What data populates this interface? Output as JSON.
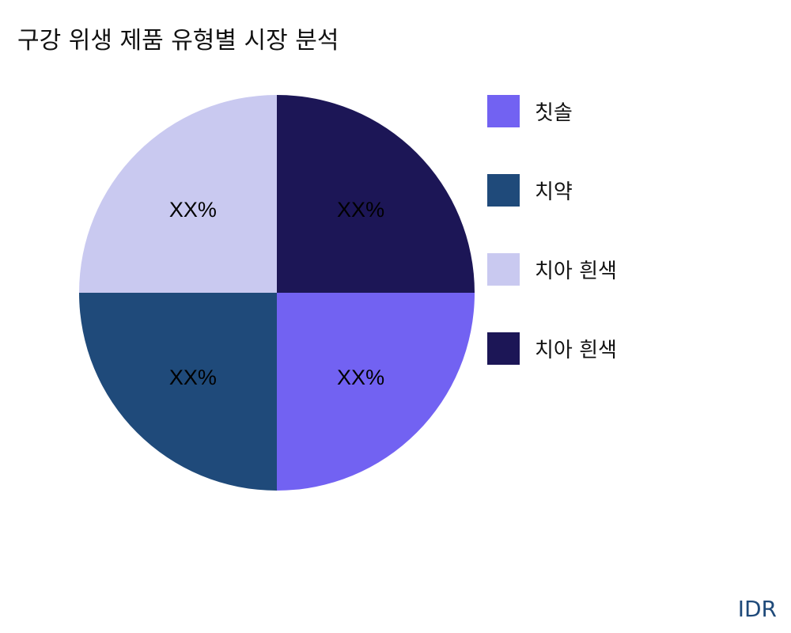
{
  "chart_data": {
    "type": "pie",
    "title": "구강 위생 제품 유형별 시장 분석",
    "slices": [
      {
        "label": "칫솔",
        "value": 25,
        "display": "XX%",
        "color": "#7262f2"
      },
      {
        "label": "치약",
        "value": 25,
        "display": "XX%",
        "color": "#1f4a7a"
      },
      {
        "label": "치아 흰색",
        "value": 25,
        "display": "XX%",
        "color": "#c9c9f0"
      },
      {
        "label": "치아 흰색",
        "value": 25,
        "display": "XX%",
        "color": "#1c1656"
      }
    ],
    "slice_order_clockwise_from_bottom_right": [
      0,
      1,
      2,
      3
    ],
    "legend_placement": "right"
  },
  "brand": "IDR"
}
